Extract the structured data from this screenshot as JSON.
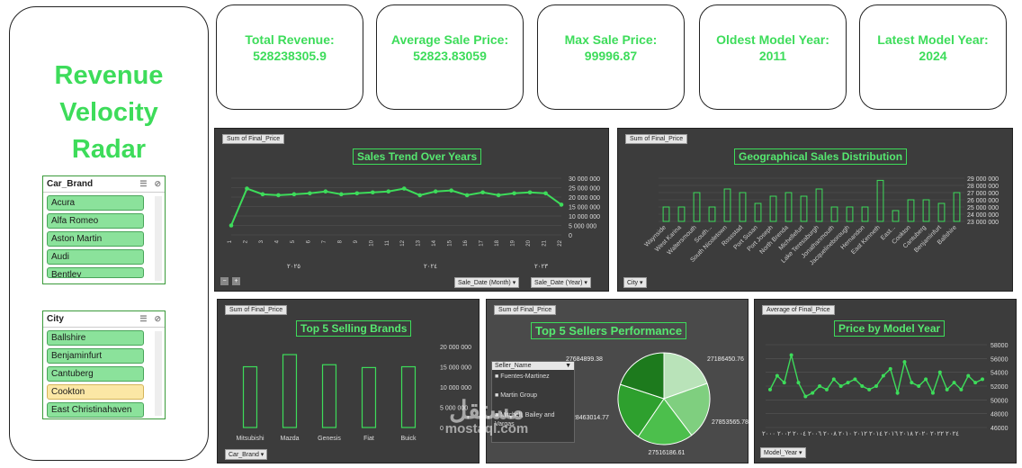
{
  "sidebar": {
    "title_lines": [
      "Revenue",
      "Velocity",
      "Radar"
    ],
    "brand_slicer": {
      "title": "Car_Brand",
      "items": [
        "Acura",
        "Alfa Romeo",
        "Aston Martin",
        "Audi",
        "Bentley"
      ]
    },
    "city_slicer": {
      "title": "City",
      "items": [
        "Ballshire",
        "Benjaminfurt",
        "Cantuberg",
        "Cookton",
        "East Christinahaven"
      ],
      "selected": "Cookton"
    }
  },
  "kpis": [
    {
      "label": "Total Revenue:",
      "value": "528238305.9"
    },
    {
      "label": "Average Sale Price:",
      "value": "52823.83059"
    },
    {
      "label": "Max Sale Price:",
      "value": "99996.87"
    },
    {
      "label": "Oldest Model Year:",
      "value": "2011"
    },
    {
      "label": "Latest  Model Year:",
      "value": "2024"
    }
  ],
  "trend": {
    "tag": "Sum of Final_Price",
    "title": "Sales Trend Over Years",
    "year_labels": [
      "٢٠٢٥",
      "٢٠٢٤",
      "٢٠٢٣"
    ],
    "dd_month": "Sale_Date (Month)",
    "dd_year": "Sale_Date (Year)",
    "chart_data": {
      "type": "line",
      "title": "Sales Trend Over Years",
      "x": [
        "1",
        "2",
        "3",
        "4",
        "5",
        "6",
        "7",
        "8",
        "9",
        "10",
        "11",
        "12",
        "13",
        "14",
        "15",
        "16",
        "17",
        "18",
        "19",
        "20",
        "21",
        "22"
      ],
      "values": [
        5000000,
        24500000,
        21500000,
        21000000,
        21500000,
        22000000,
        23000000,
        21500000,
        22000000,
        22500000,
        23000000,
        24500000,
        21000000,
        23000000,
        23500000,
        21000000,
        22500000,
        21000000,
        22000000,
        22500000,
        22000000,
        16000000
      ],
      "ylim": [
        0,
        30000000
      ],
      "yticks": [
        "30 000 000",
        "25 000 000",
        "20 000 000",
        "15 000 000",
        "10 000 000",
        "5 000 000",
        "0"
      ]
    }
  },
  "geo": {
    "tag": "Sum of Final_Price",
    "title": "Geographical Sales Distribution",
    "dd_city": "City",
    "chart_data": {
      "type": "bar",
      "title": "Geographical Sales Distribution",
      "categories": [
        "Waynside",
        "West Karina",
        "Waltersmouth",
        "South...",
        "South Nicoletown",
        "Rossstad",
        "Port Susan",
        "Port Joseph",
        "North Brenda",
        "Michellefurt",
        "Lake Teresaburgh",
        "Jonathanmouth",
        "Jacquelineborough",
        "Hernandon",
        "East Kenneth",
        "East...",
        "Cookton",
        "Cantuberg",
        "Benjaminfurt",
        "Ballshire"
      ],
      "values": [
        25000000,
        25000000,
        27000000,
        25000000,
        27500000,
        27000000,
        25500000,
        26500000,
        27000000,
        26500000,
        27500000,
        25000000,
        25000000,
        25000000,
        28700000,
        24500000,
        26000000,
        26000000,
        25500000,
        27000000
      ],
      "ylim": [
        23000000,
        29000000
      ],
      "yticks": [
        "29 000 000",
        "28 000 000",
        "27 000 000",
        "26 000 000",
        "25 000 000",
        "24 000 000",
        "23 000 000"
      ]
    }
  },
  "brands": {
    "tag": "Sum of Final_Price",
    "title": "Top 5 Selling Brands",
    "dd_brand": "Car_Brand",
    "chart_data": {
      "type": "bar",
      "title": "Top 5 Selling Brands",
      "categories": [
        "Mitsubishi",
        "Mazda",
        "Genesis",
        "Fiat",
        "Buick"
      ],
      "values": [
        15000000,
        18000000,
        15500000,
        14800000,
        15000000
      ],
      "ylim": [
        0,
        20000000
      ],
      "yticks": [
        "20 000 000",
        "15 000 000",
        "10 000 000",
        "5 000 000",
        "0"
      ]
    }
  },
  "sellers": {
    "tag": "Sum of Final_Price",
    "title": "Top 5 Sellers Performance",
    "legend_title": "Seller_Name",
    "legend": [
      "Fuentes-Martinez",
      "Martin Group",
      "Mitchell, Bailey and Vargas"
    ],
    "chart_data": {
      "type": "pie",
      "title": "Top 5 Sellers Performance",
      "labels": [
        "27186450.76",
        "27853565.78",
        "27516186.61",
        "28463014.77",
        "27684899.38"
      ],
      "values": [
        27186450.76,
        27853565.78,
        27516186.61,
        28463014.77,
        27684899.38
      ],
      "colors": [
        "#b9e3b9",
        "#7fcf7f",
        "#4cbf4c",
        "#2ea02e",
        "#1d7a1d"
      ]
    }
  },
  "model_year": {
    "tag": "Average of Final_Price",
    "title": "Price by Model Year",
    "dd_year": "Model_Year",
    "x_label_text": "٢٠٢٤ ٢٠٢٢ ٢٠٢٠ ٢٠١٨ ٢٠١٦ ٢٠١٤ ٢٠١٢ ٢٠١٠ ٢٠٠٨ ٢٠٠٦ ٢٠٠٤ ٢٠٠٢ ٢٠٠٠",
    "chart_data": {
      "type": "line",
      "title": "Price by Model Year",
      "values": [
        51500,
        53500,
        52500,
        56500,
        52500,
        50500,
        51000,
        52000,
        51500,
        53000,
        52000,
        52500,
        53000,
        52000,
        51500,
        52000,
        53500,
        54500,
        51000,
        55500,
        52500,
        52000,
        53000,
        51000,
        54000,
        51500,
        52500,
        51500,
        53500,
        52500,
        53000
      ],
      "ylim": [
        46000,
        58000
      ],
      "yticks": [
        "58000",
        "56000",
        "54000",
        "52000",
        "50000",
        "48000",
        "46000"
      ]
    }
  },
  "watermark": {
    "ar": "مستقل",
    "en": "mostaql.com"
  }
}
